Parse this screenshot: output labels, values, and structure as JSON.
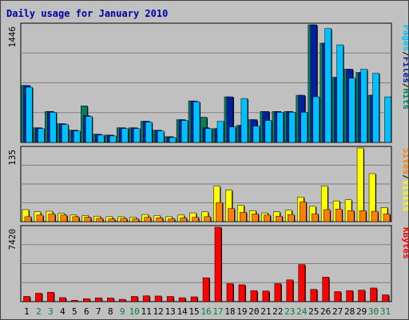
{
  "chart_data": {
    "type": "bar",
    "title": "Daily usage for January 2010",
    "categories": [
      "1",
      "2",
      "3",
      "4",
      "5",
      "6",
      "7",
      "8",
      "9",
      "10",
      "11",
      "12",
      "13",
      "14",
      "15",
      "16",
      "17",
      "18",
      "19",
      "20",
      "21",
      "22",
      "23",
      "24",
      "25",
      "26",
      "27",
      "28",
      "29",
      "30",
      "31"
    ],
    "weekend_days": [
      "2",
      "3",
      "9",
      "10",
      "16",
      "17",
      "23",
      "24",
      "30",
      "31"
    ],
    "colors": {
      "pages": "#00c0ff",
      "files": "#0020a0",
      "hits": "#008060",
      "sites": "#ff8000",
      "visits": "#ffff00",
      "kbytes": "#ff0000",
      "weekday_label": "#000000",
      "weekend_label": "#008040",
      "background": "#c0c0c0",
      "grid": "#808080",
      "title": "#0000a0"
    },
    "panels": [
      {
        "name": "hits-files-pages",
        "ymax_label": "1446",
        "ymax": 1446,
        "legend": [
          {
            "text": "Pages",
            "color": "#00c0ff"
          },
          {
            "text": "/",
            "color": "#000000"
          },
          {
            "text": "Files",
            "color": "#0020a0"
          },
          {
            "text": "/",
            "color": "#000000"
          },
          {
            "text": "Hits",
            "color": "#008060"
          }
        ],
        "series": [
          {
            "name": "Hits",
            "color": "#008060",
            "values": [
              700,
              180,
              380,
              230,
              150,
              450,
              100,
              90,
              180,
              180,
              260,
              150,
              70,
              280,
              510,
              310,
              170,
              560,
              210,
              280,
              380,
              380,
              380,
              580,
              1446,
              1220,
              800,
              900,
              860,
              580,
              0
            ]
          },
          {
            "name": "Files",
            "color": "#0020a0",
            "values": [
              700,
              180,
              380,
              230,
              150,
              330,
              100,
              90,
              180,
              180,
              260,
              150,
              70,
              280,
              510,
              180,
              170,
              560,
              210,
              280,
              380,
              380,
              380,
              580,
              1446,
              1220,
              800,
              900,
              860,
              580,
              0
            ]
          },
          {
            "name": "Pages",
            "color": "#00c0ff",
            "values": [
              680,
              170,
              370,
              220,
              140,
              320,
              90,
              80,
              170,
              170,
              250,
              140,
              60,
              270,
              500,
              170,
              260,
              190,
              540,
              200,
              270,
              370,
              370,
              370,
              560,
              1400,
              1200,
              790,
              900,
              850,
              560
            ]
          }
        ]
      },
      {
        "name": "visits-sites",
        "ymax_label": "135",
        "ymax": 135,
        "legend": [
          {
            "text": "Sites",
            "color": "#ff8000"
          },
          {
            "text": "/",
            "color": "#000000"
          },
          {
            "text": "Visits",
            "color": "#ffff00"
          }
        ],
        "series": [
          {
            "name": "Visits",
            "color": "#ffff00",
            "values": [
              22,
              18,
              19,
              15,
              12,
              11,
              10,
              9,
              9,
              8,
              13,
              11,
              9,
              12,
              16,
              18,
              65,
              58,
              30,
              20,
              16,
              18,
              21,
              45,
              28,
              65,
              38,
              40,
              135,
              88,
              26
            ]
          },
          {
            "name": "Sites",
            "color": "#ff8000",
            "values": [
              9,
              12,
              14,
              12,
              9,
              8,
              6,
              5,
              6,
              5,
              8,
              7,
              5,
              7,
              8,
              9,
              35,
              24,
              17,
              14,
              12,
              10,
              13,
              36,
              14,
              22,
              23,
              20,
              20,
              19,
              14
            ]
          }
        ]
      },
      {
        "name": "kbytes",
        "ymax_label": "7420",
        "ymax": 7420,
        "legend": [
          {
            "text": "KBytes",
            "color": "#ff0000"
          }
        ],
        "series": [
          {
            "name": "KBytes",
            "color": "#ff0000",
            "values": [
              520,
              840,
              940,
              400,
              130,
              290,
              380,
              360,
              230,
              520,
              580,
              560,
              520,
              390,
              480,
              2380,
              7420,
              1800,
              1680,
              1100,
              1060,
              1800,
              2170,
              3700,
              1220,
              2450,
              1000,
              1100,
              1150,
              1360,
              680
            ]
          }
        ]
      }
    ]
  }
}
